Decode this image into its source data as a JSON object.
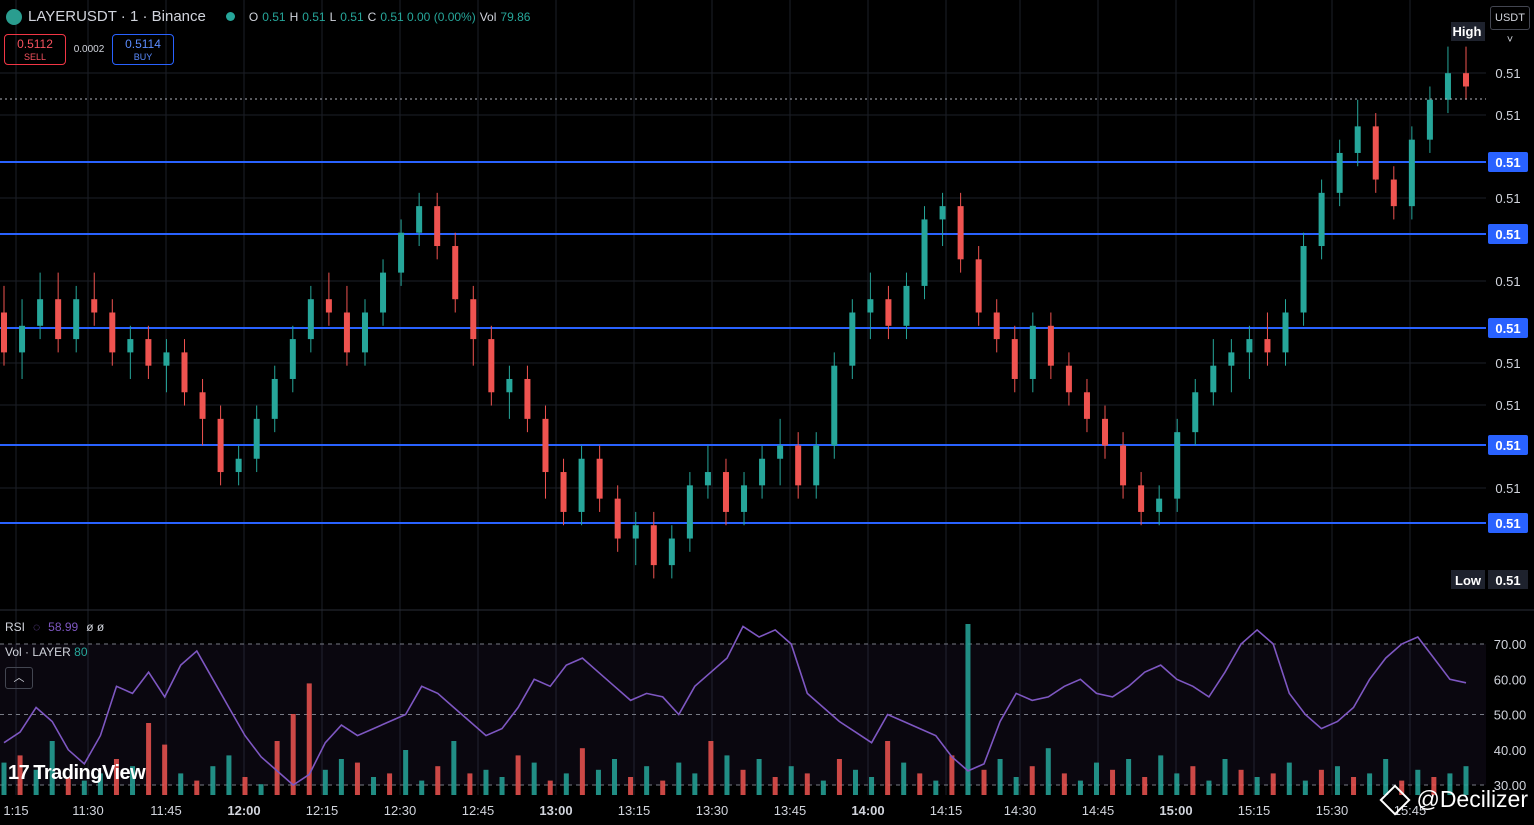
{
  "header": {
    "symbol": "LAYERUSDT · 1 · Binance",
    "o_label": "O",
    "o": "0.51",
    "h_label": "H",
    "h": "0.51",
    "l_label": "L",
    "l": "0.51",
    "c_label": "C",
    "c": "0.51 0.00 (0.00%)",
    "vol_label": "Vol",
    "vol": "79.86"
  },
  "trade": {
    "sell_price": "0.5112",
    "sell_label": "SELL",
    "spread": "0.0002",
    "buy_price": "0.5114",
    "buy_label": "BUY"
  },
  "currency_button": "USDT ˅",
  "colors": {
    "up": "#26a69a",
    "down": "#ef5350",
    "level_line": "#2962ff",
    "rsi_line": "#7e57c2",
    "background": "#000000",
    "price_tag": "#2962ff"
  },
  "price_axis": {
    "ticks": [
      "0.51",
      "0.51",
      "0.51",
      "0.51",
      "0.51",
      "0.51",
      "0.51",
      "0.51",
      "0.51"
    ],
    "high_label": "High",
    "low_label": "Low",
    "high_value": "0.51",
    "low_value": "0.51"
  },
  "indicators": {
    "rsi_label": "RSI",
    "rsi_value": "58.99",
    "rsi_extra": "ø ø",
    "vol_label": "Vol · LAYER",
    "vol_value": "80",
    "collapse_icon": "chevron-up-icon"
  },
  "branding": {
    "logo": "TradingView",
    "watermark": "@Decilizer"
  },
  "chart_data": [
    {
      "type": "candlestick",
      "title": "LAYERUSDT · 1 · Binance",
      "x_labels": [
        "1:15",
        "11:30",
        "11:45",
        "12:00",
        "12:15",
        "12:30",
        "12:45",
        "13:00",
        "13:15",
        "13:30",
        "13:45",
        "14:00",
        "14:15",
        "14:30",
        "14:45",
        "15:00",
        "15:15",
        "15:30",
        "15:45"
      ],
      "price_levels": [
        "0.51",
        "0.51",
        "0.51",
        "0.51",
        "0.51"
      ],
      "grid": true,
      "series_note": "price oscillates roughly between 0.5080 and 0.5118; close 0.51",
      "candles": [
        [
          0.5098,
          0.51,
          0.5094,
          0.5095
        ],
        [
          0.5095,
          0.5099,
          0.5093,
          0.5097
        ],
        [
          0.5097,
          0.5101,
          0.5096,
          0.5099
        ],
        [
          0.5099,
          0.5101,
          0.5095,
          0.5096
        ],
        [
          0.5096,
          0.51,
          0.5095,
          0.5099
        ],
        [
          0.5099,
          0.5101,
          0.5097,
          0.5098
        ],
        [
          0.5098,
          0.5099,
          0.5094,
          0.5095
        ],
        [
          0.5095,
          0.5097,
          0.5093,
          0.5096
        ],
        [
          0.5096,
          0.5097,
          0.5093,
          0.5094
        ],
        [
          0.5094,
          0.5096,
          0.5092,
          0.5095
        ],
        [
          0.5095,
          0.5096,
          0.5091,
          0.5092
        ],
        [
          0.5092,
          0.5093,
          0.5088,
          0.509
        ],
        [
          0.509,
          0.5091,
          0.5085,
          0.5086
        ],
        [
          0.5086,
          0.5088,
          0.5085,
          0.5087
        ],
        [
          0.5087,
          0.5091,
          0.5086,
          0.509
        ],
        [
          0.509,
          0.5094,
          0.5089,
          0.5093
        ],
        [
          0.5093,
          0.5097,
          0.5092,
          0.5096
        ],
        [
          0.5096,
          0.51,
          0.5095,
          0.5099
        ],
        [
          0.5099,
          0.5101,
          0.5097,
          0.5098
        ],
        [
          0.5098,
          0.51,
          0.5094,
          0.5095
        ],
        [
          0.5095,
          0.5099,
          0.5094,
          0.5098
        ],
        [
          0.5098,
          0.5102,
          0.5097,
          0.5101
        ],
        [
          0.5101,
          0.5105,
          0.51,
          0.5104
        ],
        [
          0.5104,
          0.5107,
          0.5103,
          0.5106
        ],
        [
          0.5106,
          0.5107,
          0.5102,
          0.5103
        ],
        [
          0.5103,
          0.5104,
          0.5098,
          0.5099
        ],
        [
          0.5099,
          0.51,
          0.5094,
          0.5096
        ],
        [
          0.5096,
          0.5097,
          0.5091,
          0.5092
        ],
        [
          0.5092,
          0.5094,
          0.509,
          0.5093
        ],
        [
          0.5093,
          0.5094,
          0.5089,
          0.509
        ],
        [
          0.509,
          0.5091,
          0.5084,
          0.5086
        ],
        [
          0.5086,
          0.5087,
          0.5082,
          0.5083
        ],
        [
          0.5083,
          0.5088,
          0.5082,
          0.5087
        ],
        [
          0.5087,
          0.5088,
          0.5083,
          0.5084
        ],
        [
          0.5084,
          0.5085,
          0.508,
          0.5081
        ],
        [
          0.5081,
          0.5083,
          0.5079,
          0.5082
        ],
        [
          0.5082,
          0.5083,
          0.5078,
          0.5079
        ],
        [
          0.5079,
          0.5082,
          0.5078,
          0.5081
        ],
        [
          0.5081,
          0.5086,
          0.508,
          0.5085
        ],
        [
          0.5085,
          0.5088,
          0.5084,
          0.5086
        ],
        [
          0.5086,
          0.5087,
          0.5082,
          0.5083
        ],
        [
          0.5083,
          0.5086,
          0.5082,
          0.5085
        ],
        [
          0.5085,
          0.5088,
          0.5084,
          0.5087
        ],
        [
          0.5087,
          0.509,
          0.5085,
          0.5088
        ],
        [
          0.5088,
          0.5089,
          0.5084,
          0.5085
        ],
        [
          0.5085,
          0.5089,
          0.5084,
          0.5088
        ],
        [
          0.5088,
          0.5095,
          0.5087,
          0.5094
        ],
        [
          0.5094,
          0.5099,
          0.5093,
          0.5098
        ],
        [
          0.5098,
          0.5101,
          0.5096,
          0.5099
        ],
        [
          0.5099,
          0.51,
          0.5096,
          0.5097
        ],
        [
          0.5097,
          0.5101,
          0.5096,
          0.51
        ],
        [
          0.51,
          0.5106,
          0.5099,
          0.5105
        ],
        [
          0.5105,
          0.5107,
          0.5103,
          0.5106
        ],
        [
          0.5106,
          0.5107,
          0.5101,
          0.5102
        ],
        [
          0.5102,
          0.5103,
          0.5097,
          0.5098
        ],
        [
          0.5098,
          0.5099,
          0.5095,
          0.5096
        ],
        [
          0.5096,
          0.5097,
          0.5092,
          0.5093
        ],
        [
          0.5093,
          0.5098,
          0.5092,
          0.5097
        ],
        [
          0.5097,
          0.5098,
          0.5093,
          0.5094
        ],
        [
          0.5094,
          0.5095,
          0.5091,
          0.5092
        ],
        [
          0.5092,
          0.5093,
          0.5089,
          0.509
        ],
        [
          0.509,
          0.5091,
          0.5087,
          0.5088
        ],
        [
          0.5088,
          0.5089,
          0.5084,
          0.5085
        ],
        [
          0.5085,
          0.5086,
          0.5082,
          0.5083
        ],
        [
          0.5083,
          0.5085,
          0.5082,
          0.5084
        ],
        [
          0.5084,
          0.509,
          0.5083,
          0.5089
        ],
        [
          0.5089,
          0.5093,
          0.5088,
          0.5092
        ],
        [
          0.5092,
          0.5096,
          0.5091,
          0.5094
        ],
        [
          0.5094,
          0.5096,
          0.5092,
          0.5095
        ],
        [
          0.5095,
          0.5097,
          0.5093,
          0.5096
        ],
        [
          0.5096,
          0.5098,
          0.5094,
          0.5095
        ],
        [
          0.5095,
          0.5099,
          0.5094,
          0.5098
        ],
        [
          0.5098,
          0.5104,
          0.5097,
          0.5103
        ],
        [
          0.5103,
          0.5108,
          0.5102,
          0.5107
        ],
        [
          0.5107,
          0.5111,
          0.5106,
          0.511
        ],
        [
          0.511,
          0.5114,
          0.5109,
          0.5112
        ],
        [
          0.5112,
          0.5113,
          0.5107,
          0.5108
        ],
        [
          0.5108,
          0.5109,
          0.5105,
          0.5106
        ],
        [
          0.5106,
          0.5112,
          0.5105,
          0.5111
        ],
        [
          0.5111,
          0.5115,
          0.511,
          0.5114
        ],
        [
          0.5114,
          0.5118,
          0.5113,
          0.5116
        ],
        [
          0.5116,
          0.5118,
          0.5114,
          0.5115
        ]
      ]
    },
    {
      "type": "line",
      "title": "RSI",
      "ylim": [
        30,
        80
      ],
      "y_ticks": [
        "70.00",
        "60.00",
        "50.00",
        "40.00",
        "30.00"
      ],
      "values": [
        42,
        45,
        52,
        48,
        40,
        36,
        44,
        58,
        56,
        62,
        55,
        64,
        68,
        60,
        52,
        44,
        38,
        34,
        30,
        33,
        42,
        47,
        44,
        46,
        48,
        50,
        58,
        56,
        52,
        48,
        44,
        46,
        52,
        60,
        58,
        64,
        66,
        62,
        58,
        54,
        56,
        55,
        50,
        58,
        62,
        66,
        75,
        72,
        74,
        70,
        56,
        52,
        48,
        45,
        42,
        50,
        48,
        46,
        44,
        38,
        34,
        36,
        48,
        56,
        54,
        55,
        58,
        60,
        56,
        55,
        58,
        62,
        64,
        60,
        58,
        55,
        62,
        70,
        74,
        70,
        56,
        50,
        46,
        48,
        52,
        60,
        66,
        70,
        72,
        66,
        60,
        59
      ],
      "vol_values": [
        18,
        22,
        14,
        30,
        10,
        8,
        12,
        20,
        16,
        40,
        28,
        12,
        8,
        16,
        22,
        10,
        6,
        30,
        45,
        62,
        14,
        20,
        18,
        10,
        12,
        25,
        8,
        16,
        30,
        12,
        14,
        10,
        22,
        18,
        8,
        12,
        26,
        14,
        20,
        10,
        16,
        8,
        18,
        12,
        30,
        22,
        14,
        20,
        10,
        16,
        12,
        8,
        20,
        14,
        10,
        30,
        18,
        12,
        8,
        22,
        95,
        14,
        20,
        10,
        16,
        26,
        12,
        8,
        18,
        14,
        20,
        10,
        22,
        12,
        16,
        8,
        20,
        14,
        10,
        12,
        18,
        8,
        14,
        16,
        10,
        12,
        20,
        8,
        14,
        10,
        12,
        16
      ],
      "vol_colors": [
        "up",
        "down",
        "up",
        "up",
        "down",
        "up",
        "up",
        "down",
        "up",
        "down",
        "down",
        "up",
        "down",
        "up",
        "up",
        "down",
        "up",
        "down",
        "down",
        "down",
        "up",
        "up",
        "down",
        "up",
        "down",
        "up",
        "up",
        "down",
        "up",
        "down",
        "up",
        "up",
        "down",
        "up",
        "down",
        "up",
        "down",
        "up",
        "up",
        "down",
        "up",
        "down",
        "up",
        "up",
        "down",
        "up",
        "down",
        "up",
        "down",
        "up",
        "down",
        "up",
        "down",
        "up",
        "up",
        "down",
        "up",
        "down",
        "up",
        "down",
        "up",
        "down",
        "up",
        "up",
        "down",
        "up",
        "down",
        "up",
        "up",
        "down",
        "up",
        "down",
        "up",
        "up",
        "down",
        "up",
        "up",
        "down",
        "up",
        "down",
        "up",
        "up",
        "down",
        "up",
        "down",
        "up",
        "up",
        "down",
        "up",
        "down",
        "up",
        "up"
      ]
    }
  ]
}
